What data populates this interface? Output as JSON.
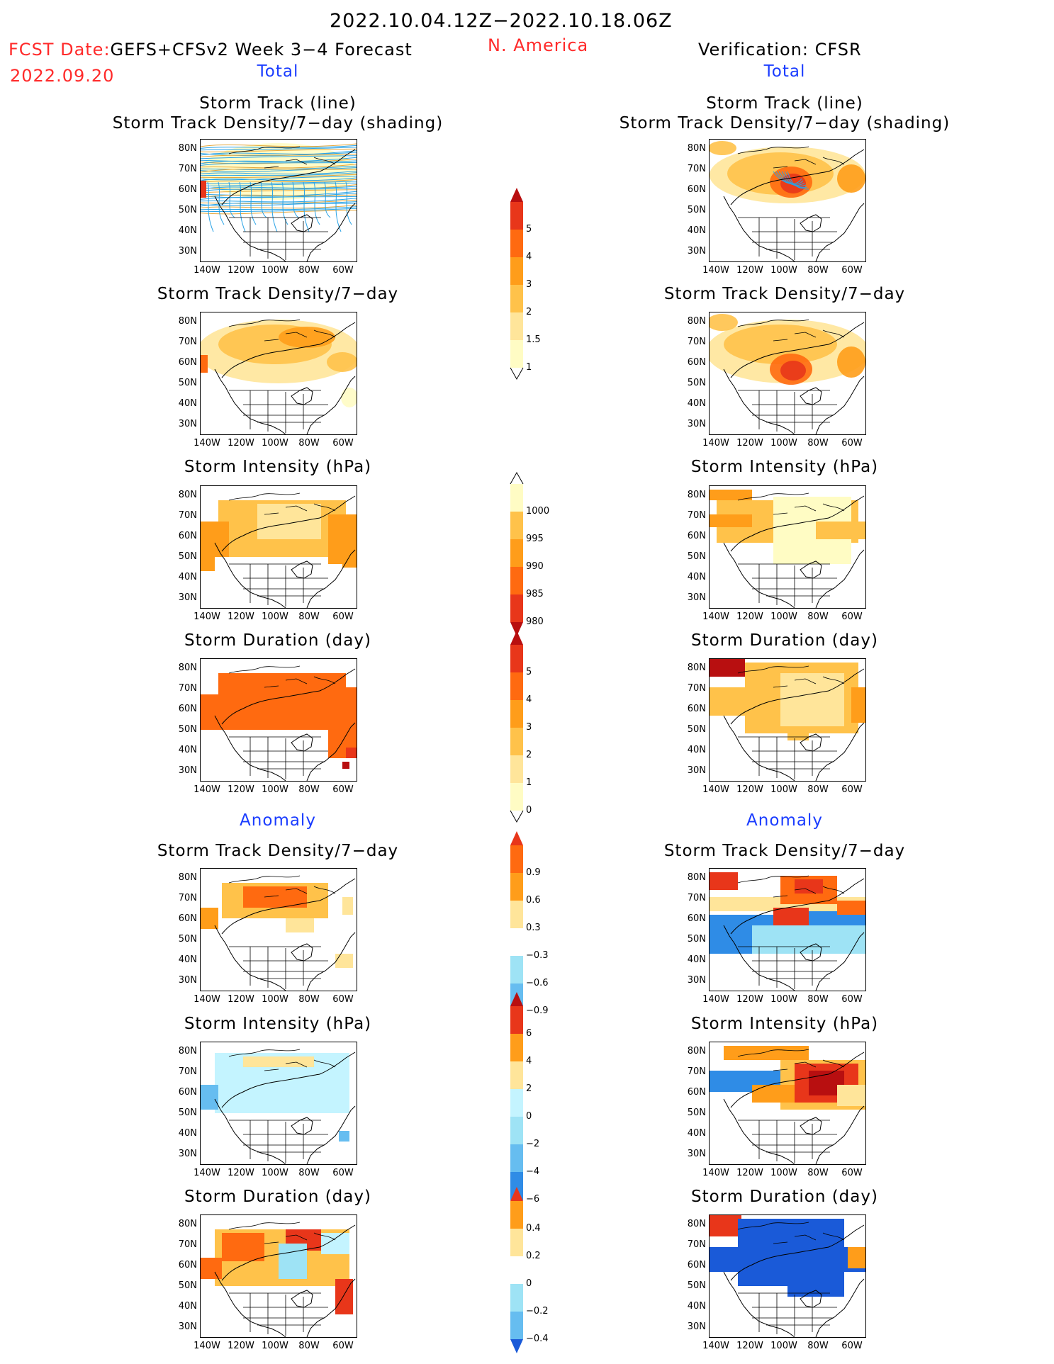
{
  "header": {
    "period": "2022.10.04.12Z−2022.10.18.06Z",
    "fcst_date_label": "FCST Date:",
    "fcst_title": "GEFS+CFSv2 Week 3−4 Forecast",
    "fcst_date": "2022.09.20",
    "region": "N. America",
    "verification": "Verification: CFSR"
  },
  "sections": {
    "total": "Total",
    "anomaly": "Anomaly"
  },
  "titles": {
    "track_line": "Storm Track (line)",
    "track_shading": "Storm Track Density/7−day (shading)",
    "density": "Storm Track Density/7−day",
    "intensity": "Storm Intensity (hPa)",
    "duration": "Storm Duration (day)"
  },
  "axes": {
    "lat": [
      "80N",
      "70N",
      "60N",
      "50N",
      "40N",
      "30N"
    ],
    "lon": [
      "140W",
      "120W",
      "100W",
      "80W",
      "60W"
    ]
  },
  "colorbars": {
    "density_total": [
      "5",
      "4",
      "3",
      "2",
      "1.5",
      "1"
    ],
    "intensity_total": [
      "1000",
      "995",
      "990",
      "985",
      "980"
    ],
    "duration_total": [
      "5",
      "4",
      "3",
      "2",
      "1",
      "0"
    ],
    "density_anom": [
      "0.9",
      "0.6",
      "0.3",
      "−0.3",
      "−0.6",
      "−0.9"
    ],
    "intensity_anom": [
      "6",
      "4",
      "2",
      "0",
      "−2",
      "−4",
      "−6"
    ],
    "duration_anom": [
      "0.4",
      "0.2",
      "0",
      "−0.2",
      "−0.4"
    ]
  },
  "colors": {
    "red": "#ff2a2a",
    "blue": "#1a3cff",
    "warm": [
      "#fffcc4",
      "#ffe59a",
      "#ffc24a",
      "#ff9d1a",
      "#ff6a10",
      "#e8361a",
      "#b80f10"
    ],
    "cool": [
      "#c4f4ff",
      "#9ee3f5",
      "#66bdf0",
      "#2f8ce6",
      "#1a5ad8"
    ]
  }
}
